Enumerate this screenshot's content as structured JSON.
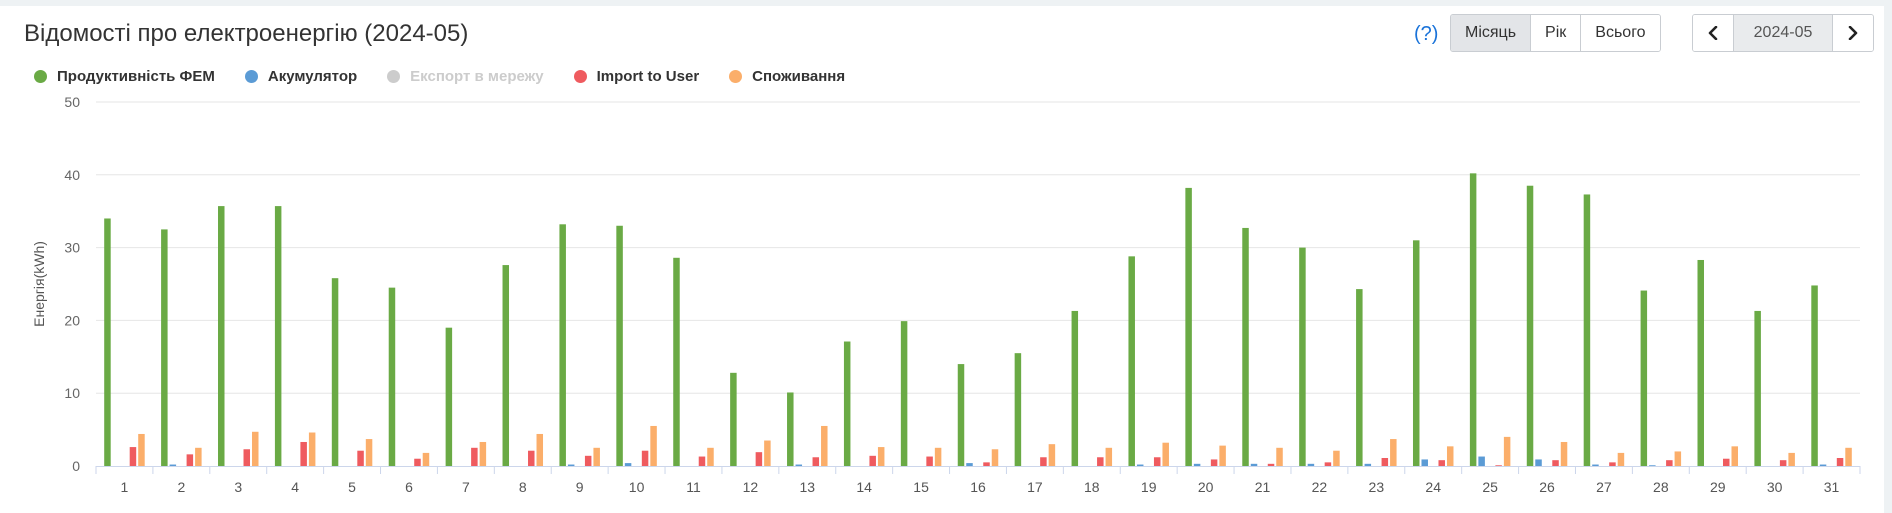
{
  "header": {
    "title": "Відомості про електроенергію (2024-05)",
    "help_label": "(?)",
    "periods": [
      "Місяць",
      "Рік",
      "Всього"
    ],
    "active_period": "Місяць",
    "date_value": "2024-05"
  },
  "legend": [
    {
      "name": "Продуктивність ФЕМ",
      "color": "#6aaa45",
      "enabled": true
    },
    {
      "name": "Акумулятор",
      "color": "#5b9bd5",
      "enabled": true
    },
    {
      "name": "Експорт в мережу",
      "color": "#cccccc",
      "enabled": false
    },
    {
      "name": "Import to User",
      "color": "#ef5b5f",
      "enabled": true
    },
    {
      "name": "Споживання",
      "color": "#fbae6a",
      "enabled": true
    }
  ],
  "chart_data": {
    "type": "bar",
    "ylabel": "Енергія(kWh)",
    "ylim": [
      0,
      50
    ],
    "yticks": [
      0,
      10,
      20,
      30,
      40,
      50
    ],
    "grid": true,
    "legend_position": "top-left",
    "categories": [
      "1",
      "2",
      "3",
      "4",
      "5",
      "6",
      "7",
      "8",
      "9",
      "10",
      "11",
      "12",
      "13",
      "14",
      "15",
      "16",
      "17",
      "18",
      "19",
      "20",
      "21",
      "22",
      "23",
      "24",
      "25",
      "26",
      "27",
      "28",
      "29",
      "30",
      "31"
    ],
    "series": [
      {
        "name": "Продуктивність ФЕМ",
        "color": "#6aaa45",
        "values": [
          34.0,
          32.5,
          35.7,
          35.7,
          25.8,
          24.5,
          19.0,
          27.6,
          33.2,
          33.0,
          28.6,
          12.8,
          10.1,
          17.1,
          19.9,
          14.0,
          15.5,
          21.3,
          28.8,
          38.2,
          32.7,
          30.0,
          24.3,
          31.0,
          40.2,
          38.5,
          37.3,
          24.1,
          28.3,
          21.3,
          24.8
        ]
      },
      {
        "name": "Акумулятор",
        "color": "#5b9bd5",
        "values": [
          0,
          0.2,
          0,
          0,
          0,
          0,
          0,
          0,
          0.2,
          0.4,
          0,
          0,
          0.2,
          0,
          0,
          0.4,
          0,
          0,
          0.2,
          0.3,
          0.3,
          0.3,
          0.3,
          0.9,
          1.3,
          0.9,
          0.2,
          0.1,
          0,
          0,
          0.2
        ]
      },
      {
        "name": "Експорт в мережу",
        "color": "#cccccc",
        "values": [
          0,
          0,
          0,
          0,
          0,
          0,
          0,
          0,
          0,
          0,
          0,
          0,
          0,
          0,
          0,
          0,
          0,
          0,
          0,
          0,
          0,
          0,
          0,
          0,
          0,
          0,
          0,
          0,
          0,
          0,
          0
        ]
      },
      {
        "name": "Import to User",
        "color": "#ef5b5f",
        "values": [
          2.6,
          1.6,
          2.3,
          3.3,
          2.1,
          1.0,
          2.5,
          2.1,
          1.4,
          2.1,
          1.3,
          1.9,
          1.2,
          1.4,
          1.3,
          0.5,
          1.2,
          1.2,
          1.2,
          0.9,
          0.3,
          0.5,
          1.1,
          0.8,
          0.1,
          0.8,
          0.5,
          0.8,
          1.0,
          0.8,
          1.1
        ]
      },
      {
        "name": "Споживання",
        "color": "#fbae6a",
        "values": [
          4.4,
          2.5,
          4.7,
          4.6,
          3.7,
          1.8,
          3.3,
          4.4,
          2.5,
          5.5,
          2.5,
          3.5,
          5.5,
          2.6,
          2.5,
          2.3,
          3.0,
          2.5,
          3.2,
          2.8,
          2.5,
          2.1,
          3.7,
          2.7,
          4.0,
          3.3,
          1.8,
          2.0,
          2.7,
          1.8,
          2.5
        ]
      }
    ]
  }
}
